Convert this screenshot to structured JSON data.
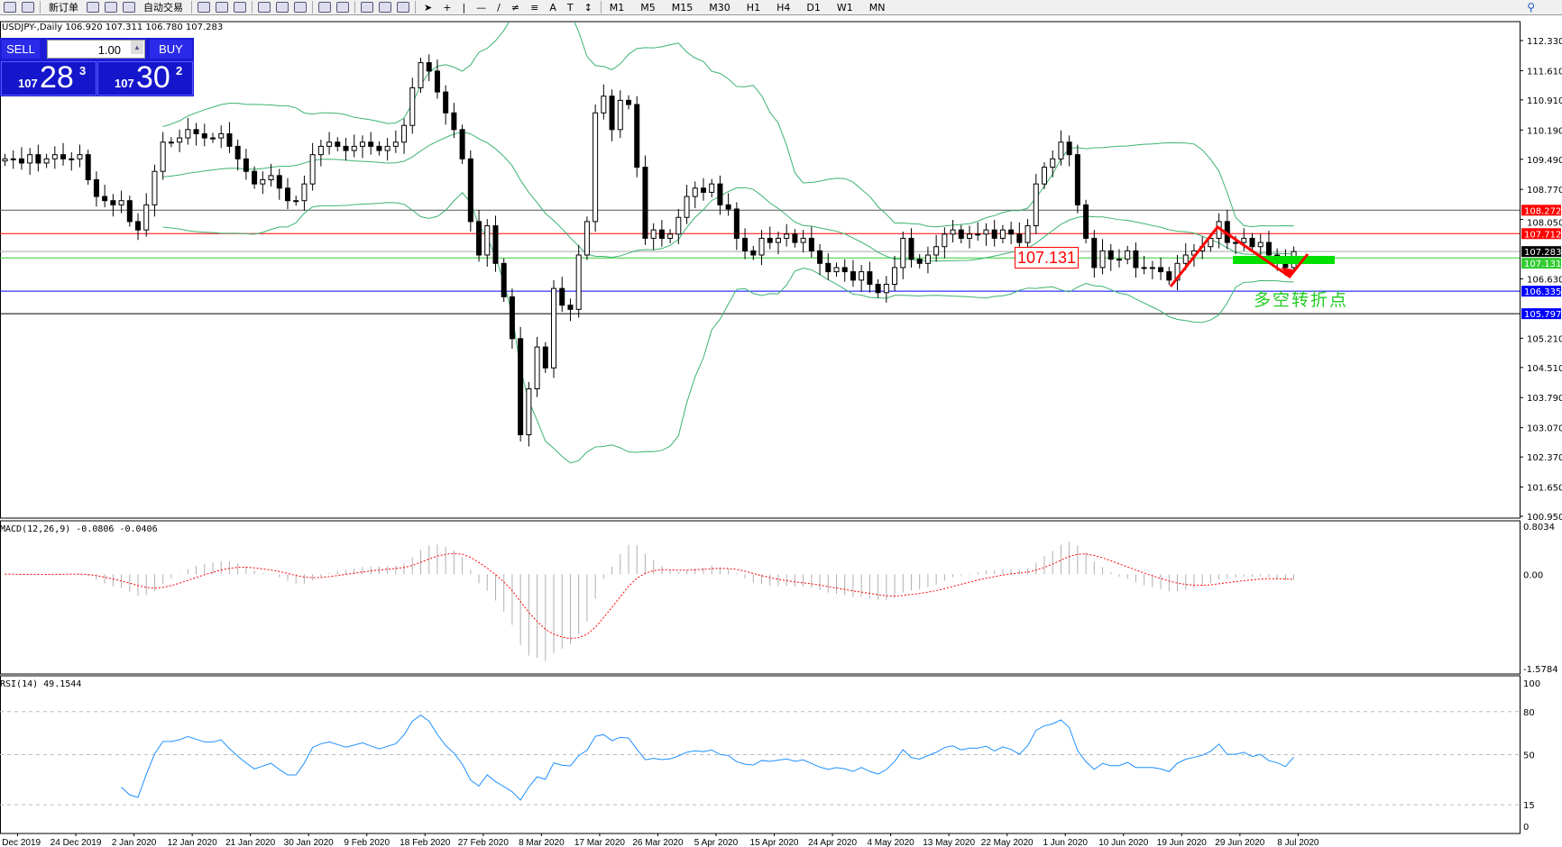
{
  "toolbar": {
    "new_order": "新订单",
    "auto_trade": "自动交易",
    "timeframes": [
      "M1",
      "M5",
      "M15",
      "M30",
      "H1",
      "H4",
      "D1",
      "W1",
      "MN"
    ]
  },
  "symbol_info": "USDJPY-,Daily  106.920 107.311 106.780 107.283",
  "trade_panel": {
    "sell": "SELL",
    "buy": "BUY",
    "lot": "1.00",
    "sell_big": "107",
    "sell_main": "28",
    "sell_frac": "3",
    "buy_big": "107",
    "buy_main": "30",
    "buy_frac": "2"
  },
  "indicators": {
    "macd_label": "MACD(12,26,9) -0.0806 -0.0406",
    "rsi_label": "RSI(14) 49.1544"
  },
  "annotations": {
    "box_price": "107.131",
    "text": "多空转折点"
  },
  "colors": {
    "bollinger": "#3cb371",
    "rsi": "#1e90ff",
    "signal": "#ff0000",
    "annotation_text": "#22cc22"
  },
  "chart_data": {
    "type": "candlestick",
    "symbol": "USDJPY-",
    "timeframe": "Daily",
    "ylim": [
      100.95,
      112.33
    ],
    "price_ticks": [
      "112.330",
      "111.610",
      "110.910",
      "110.190",
      "109.490",
      "108.770",
      "108.050",
      "106.630",
      "105.210",
      "104.510",
      "103.790",
      "103.070",
      "102.370",
      "101.650",
      "100.950"
    ],
    "level_lines": [
      {
        "price": "108.272",
        "color": "#555555",
        "label_color": "#ff0000"
      },
      {
        "price": "107.712",
        "color": "#ff0000",
        "label_color": "#ff0000"
      },
      {
        "price": "107.283",
        "color": "#aaaaaa",
        "label_color": "#000000"
      },
      {
        "price": "107.131",
        "color": "#32cd32",
        "label_color": "#32cd32"
      },
      {
        "price": "106.335",
        "color": "#0000ff",
        "label_color": "#0000ff"
      },
      {
        "price": "105.797",
        "color": "#000000",
        "label_color": "#0000ff"
      }
    ],
    "closes": [
      109.5,
      109.5,
      109.4,
      109.6,
      109.4,
      109.5,
      109.6,
      109.5,
      109.5,
      109.6,
      109.0,
      108.6,
      108.5,
      108.4,
      108.5,
      108.0,
      107.8,
      108.4,
      109.2,
      109.9,
      109.9,
      110.0,
      110.2,
      110.1,
      110.0,
      110.0,
      110.1,
      109.8,
      109.5,
      109.2,
      108.9,
      109.0,
      109.1,
      108.8,
      108.5,
      108.5,
      108.9,
      109.6,
      109.8,
      109.9,
      109.8,
      109.7,
      109.8,
      109.9,
      109.8,
      109.7,
      109.8,
      109.9,
      110.3,
      111.2,
      111.8,
      111.6,
      111.1,
      110.6,
      110.2,
      109.5,
      108.0,
      107.2,
      107.9,
      107.0,
      106.2,
      105.2,
      102.9,
      104.0,
      105.0,
      104.5,
      106.4,
      106.0,
      105.9,
      107.2,
      108.0,
      110.6,
      111.0,
      110.2,
      110.9,
      110.8,
      109.3,
      107.6,
      107.8,
      107.6,
      107.7,
      108.1,
      108.6,
      108.8,
      108.7,
      108.9,
      108.4,
      108.3,
      107.6,
      107.3,
      107.2,
      107.6,
      107.5,
      107.6,
      107.7,
      107.5,
      107.6,
      107.3,
      107.0,
      106.8,
      106.9,
      106.8,
      106.6,
      106.8,
      106.5,
      106.3,
      106.5,
      106.9,
      107.6,
      107.1,
      107.0,
      107.2,
      107.4,
      107.7,
      107.8,
      107.6,
      107.7,
      107.7,
      107.8,
      107.6,
      107.8,
      107.7,
      107.5,
      107.9,
      108.9,
      109.3,
      109.5,
      109.9,
      109.6,
      108.4,
      107.6,
      106.9,
      107.3,
      107.1,
      107.1,
      107.3,
      106.9,
      106.9,
      106.9,
      106.8,
      106.6,
      107.0,
      107.2,
      107.3,
      107.4,
      107.6,
      108.0,
      107.5,
      107.5,
      107.6,
      107.4,
      107.5,
      107.2,
      107.1,
      106.9,
      107.283
    ],
    "date_labels": [
      "5 Dec 2019",
      "24 Dec 2019",
      "2 Jan 2020",
      "12 Jan 2020",
      "21 Jan 2020",
      "30 Jan 2020",
      "9 Feb 2020",
      "18 Feb 2020",
      "27 Feb 2020",
      "8 Mar 2020",
      "17 Mar 2020",
      "26 Mar 2020",
      "5 Apr 2020",
      "15 Apr 2020",
      "24 Apr 2020",
      "4 May 2020",
      "13 May 2020",
      "22 May 2020",
      "1 Jun 2020",
      "10 Jun 2020",
      "19 Jun 2020",
      "29 Jun 2020",
      "8 Jul 2020"
    ],
    "macd": {
      "ticks": [
        "0.8034",
        "0.00",
        "-1.5784"
      ],
      "ylim": [
        -1.5784,
        0.8034
      ]
    },
    "rsi": {
      "ticks": [
        "100",
        "80",
        "50",
        "15",
        "0"
      ],
      "levels": [
        80,
        50,
        15
      ]
    }
  }
}
